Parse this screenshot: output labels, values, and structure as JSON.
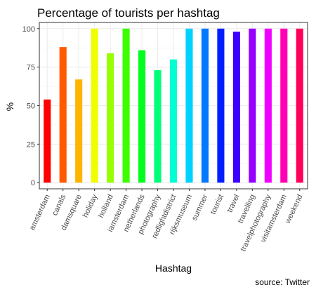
{
  "chart_data": {
    "type": "bar",
    "title": "Percentage of tourists per hashtag",
    "xlabel": "Hashtag",
    "ylabel": "%",
    "caption": "source: Twitter",
    "ylim": [
      -4,
      104
    ],
    "yticks": [
      "0",
      "25",
      "50",
      "75",
      "100"
    ],
    "grid": true,
    "legend": "none",
    "categories": [
      "amsterdam",
      "canals",
      "damsquare",
      "holiday",
      "holland",
      "iamsterdam",
      "netherlands",
      "photography",
      "redlightdistrict",
      "rijksmuseum",
      "summer",
      "tourist",
      "travel",
      "travelling",
      "travelphotography",
      "visitamsterdam",
      "weekend"
    ],
    "values": [
      54,
      88,
      67,
      100,
      84,
      100,
      86,
      73,
      80,
      100,
      100,
      100,
      98,
      100,
      100,
      100,
      100
    ],
    "colors": [
      "#FF0000",
      "#FF5A00",
      "#FFB400",
      "#F0FF00",
      "#96FF00",
      "#3CFF00",
      "#00FF1E",
      "#00FF78",
      "#00FFD2",
      "#00D2FF",
      "#0078FF",
      "#001EFF",
      "#3C00FF",
      "#9600FF",
      "#F000FF",
      "#FF00B4",
      "#FF005A"
    ]
  }
}
